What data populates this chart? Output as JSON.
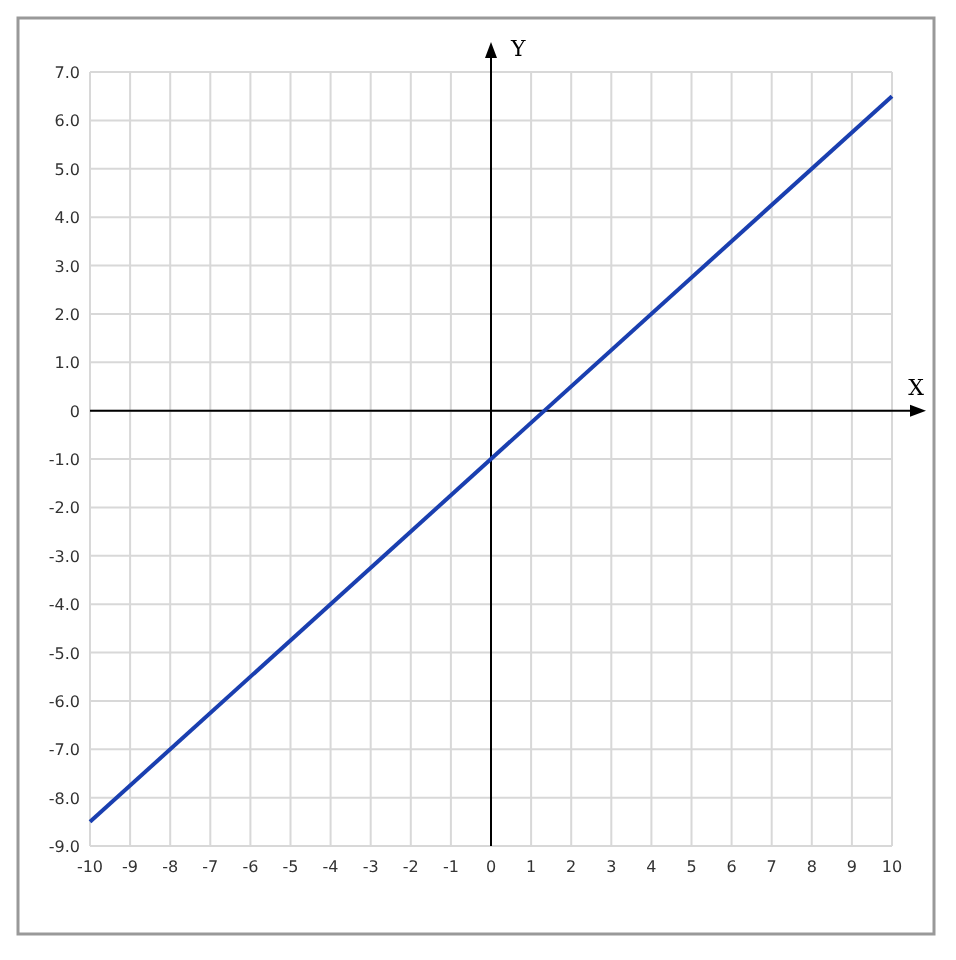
{
  "chart_data": {
    "type": "line",
    "xlabel": "X",
    "ylabel": "Y",
    "x": [
      -10,
      10
    ],
    "series": [
      {
        "color": "#1a3fb0",
        "values": [
          -8.5,
          6.5
        ]
      }
    ],
    "xlim": [
      -10,
      10
    ],
    "ylim": [
      -9,
      7
    ],
    "xticks": [
      -10,
      -9,
      -8,
      -7,
      -6,
      -5,
      -4,
      -3,
      -2,
      -1,
      0,
      1,
      2,
      3,
      4,
      5,
      6,
      7,
      8,
      9,
      10
    ],
    "yticks": [
      {
        "value": 7,
        "label": "7.0"
      },
      {
        "value": 6,
        "label": "6.0"
      },
      {
        "value": 5,
        "label": "5.0"
      },
      {
        "value": 4,
        "label": "4.0"
      },
      {
        "value": 3,
        "label": "3.0"
      },
      {
        "value": 2,
        "label": "2.0"
      },
      {
        "value": 1,
        "label": "1.0"
      },
      0,
      {
        "value": -1,
        "label": "-1.0"
      },
      {
        "value": -2,
        "label": "-2.0"
      },
      {
        "value": -3,
        "label": "-3.0"
      },
      {
        "value": -4,
        "label": "-4.0"
      },
      {
        "value": -5,
        "label": "-5.0"
      },
      {
        "value": -6,
        "label": "-6.0"
      },
      {
        "value": -7,
        "label": "-7.0"
      },
      {
        "value": -8,
        "label": "-8.0"
      },
      {
        "value": -9,
        "label": "-9.0"
      }
    ],
    "grid": true,
    "marker": "none",
    "line_style": "solid"
  }
}
